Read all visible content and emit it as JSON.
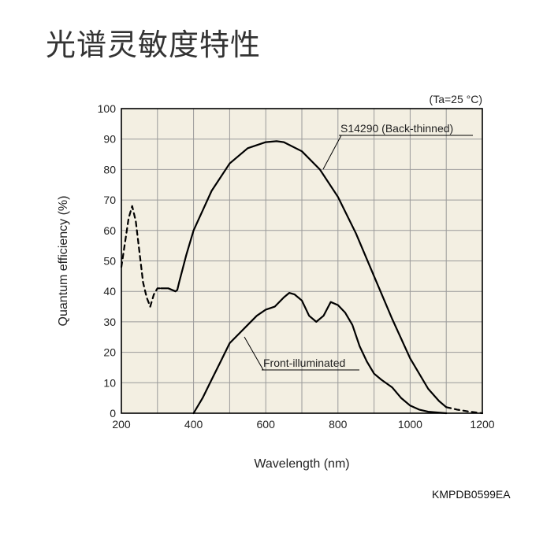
{
  "page": {
    "title": "光谱灵敏度特性",
    "figure_code": "KMPDB0599EA"
  },
  "colors": {
    "plot_bg": "#f3efe2",
    "grid": "#9a9a9a",
    "line": "#000000",
    "text": "#222222"
  },
  "chart_data": {
    "type": "line",
    "title": "",
    "condition": "(Ta=25 °C)",
    "xlabel": "Wavelength (nm)",
    "ylabel": "Quantum efficiency (%)",
    "xlim": [
      200,
      1200
    ],
    "ylim": [
      0,
      100
    ],
    "xticks": [
      200,
      400,
      600,
      800,
      1000,
      1200
    ],
    "yticks": [
      0,
      10,
      20,
      30,
      40,
      50,
      60,
      70,
      80,
      90,
      100
    ],
    "grid": true,
    "series": [
      {
        "name": "S14290 (Back-thinned)",
        "segments": [
          {
            "style": "dashed",
            "x": [
              200,
              210,
              220,
              230,
              240,
              250,
              260,
              270,
              280
            ],
            "y": [
              48,
              56,
              64,
              68,
              63,
              53,
              43,
              38,
              35
            ]
          },
          {
            "style": "dashed",
            "x": [
              280,
              290,
              300,
              310
            ],
            "y": [
              35,
              39,
              41,
              41
            ]
          },
          {
            "style": "solid",
            "x": [
              310,
              330,
              350,
              355,
              360,
              380,
              400,
              450,
              500,
              550,
              600,
              630,
              650,
              700,
              750,
              800,
              850,
              900,
              950,
              1000,
              1050,
              1080,
              1100
            ],
            "y": [
              41,
              41,
              40,
              40.5,
              43,
              52,
              60,
              73,
              82,
              87,
              89,
              89.3,
              89,
              86,
              80,
              71,
              59,
              45,
              31,
              18,
              8,
              4,
              2
            ]
          },
          {
            "style": "dashed",
            "x": [
              1100,
              1130,
              1160,
              1200
            ],
            "y": [
              2,
              1.2,
              0.6,
              0
            ]
          }
        ]
      },
      {
        "name": "Front-illuminated",
        "segments": [
          {
            "style": "solid",
            "x": [
              400,
              425,
              450,
              475,
              500,
              525,
              550,
              575,
              600,
              625,
              650,
              665,
              680,
              700,
              720,
              740,
              760,
              780,
              800,
              820,
              840,
              860,
              880,
              900,
              920,
              950,
              975,
              1000,
              1025,
              1050,
              1100
            ],
            "y": [
              0,
              5,
              11,
              17,
              23,
              26,
              29,
              32,
              34,
              35,
              38,
              39.5,
              39,
              37,
              32,
              30,
              32,
              36.5,
              35.5,
              33,
              29,
              22,
              17,
              13,
              11,
              8.5,
              5,
              2.5,
              1.2,
              0.5,
              0
            ]
          }
        ]
      }
    ]
  }
}
